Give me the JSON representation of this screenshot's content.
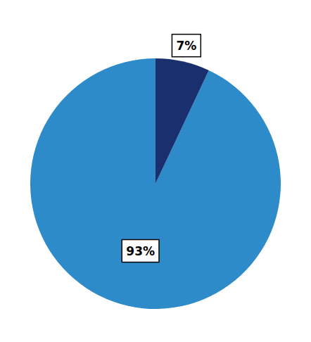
{
  "chart_data": {
    "type": "pie",
    "values": [
      93,
      7
    ],
    "value_labels": [
      "93%",
      "7%"
    ],
    "colors": [
      "#2e8bc9",
      "#1a2f6e"
    ],
    "data_labels": true
  }
}
